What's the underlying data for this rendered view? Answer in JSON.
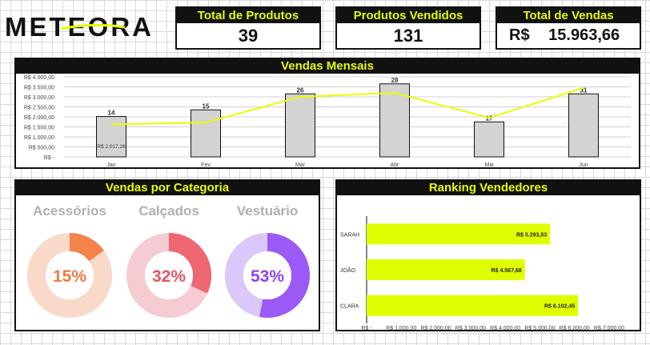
{
  "brand": {
    "logo_text": "METEORA"
  },
  "kpis": [
    {
      "label": "Total de Produtos",
      "value": "39"
    },
    {
      "label": "Produtos Vendidos",
      "value": "131"
    },
    {
      "label": "Total de Vendas",
      "currency": "R$",
      "value": "15.963,66"
    }
  ],
  "monthly": {
    "title": "Vendas Mensais",
    "extra_label": "R$ 2.017,26"
  },
  "category": {
    "title": "Vendas por Categoria",
    "items": [
      {
        "name": "Acessórios",
        "pct_label": "15%",
        "pct": 15,
        "color": "#f4834a",
        "track": "#f9d9c8",
        "text_color": "#ef7a3f"
      },
      {
        "name": "Calçados",
        "pct_label": "32%",
        "pct": 32,
        "color": "#ee6672",
        "track": "#f5ccd1",
        "text_color": "#e45563"
      },
      {
        "name": "Vestuário",
        "pct_label": "53%",
        "pct": 53,
        "color": "#9b59f5",
        "track": "#d9c8f9",
        "text_color": "#8c45f0"
      }
    ]
  },
  "ranking": {
    "title": "Ranking Vendedores"
  },
  "chart_data": [
    {
      "type": "bar",
      "title": "Vendas Mensais",
      "categories": [
        "Jan",
        "Fev",
        "Mar",
        "Abr",
        "Mai",
        "Jun"
      ],
      "series": [
        {
          "values": [
            2017.26,
            2350,
            3150,
            3650,
            1750,
            3150
          ],
          "data_labels": [
            "14",
            "15",
            "26",
            "28",
            "17",
            "31"
          ],
          "bar_color": "#d3d3d3"
        },
        {
          "type": "line",
          "values": [
            1620,
            1720,
            3000,
            3200,
            1950,
            3450
          ],
          "color": "#e6ff00"
        }
      ],
      "ylim": [
        0,
        4000
      ],
      "y_ticks": [
        "R$ -",
        "R$ 500,00",
        "R$ 1.000,00",
        "R$ 1.500,00",
        "R$ 2.000,00",
        "R$ 2.500,00",
        "R$ 3.000,00",
        "R$ 3.500,00",
        "R$ 4.000,00"
      ],
      "grid": true
    },
    {
      "type": "bar",
      "orientation": "horizontal",
      "title": "Ranking Vendedores",
      "categories": [
        "SARAH",
        "JOÃO",
        "CLARA"
      ],
      "values": [
        5293.53,
        4567.68,
        6102.45
      ],
      "value_labels": [
        "R$ 5.293,53",
        "R$ 4.567,68",
        "R$ 6.102,45"
      ],
      "xlim": [
        0,
        7000
      ],
      "x_ticks": [
        "R$ -",
        "R$ 1.000,00",
        "R$ 2.000,00",
        "R$ 3.000,00",
        "R$ 4.000,00",
        "R$ 5.000,00",
        "R$ 6.000,00",
        "R$ 7.000,00"
      ],
      "bar_color": "#dfff00"
    },
    {
      "type": "pie",
      "title": "Vendas por Categoria",
      "labels": [
        "Acessórios",
        "Calçados",
        "Vestuário"
      ],
      "values": [
        15,
        32,
        53
      ]
    }
  ]
}
